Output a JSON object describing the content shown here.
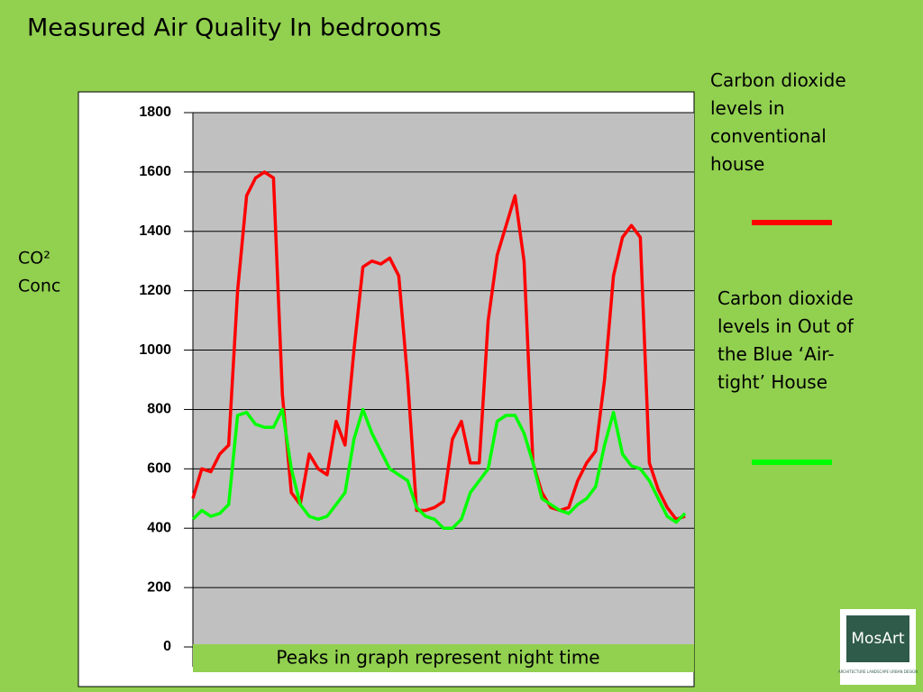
{
  "chart_data": {
    "type": "line",
    "title": "Measured Air Quality In bedrooms",
    "y_label_lines": [
      "CO²",
      "Conc"
    ],
    "annotation": "Peaks in graph represent night time",
    "logo": {
      "name": "MosArt",
      "tagline": "ARCHITECTURE LANDSCAPE URBAN DESIGN"
    },
    "categories": [
      null,
      null,
      null,
      null,
      null,
      null,
      null,
      null,
      null,
      null,
      null,
      null,
      null,
      null,
      null,
      null,
      null,
      null,
      null,
      null,
      null,
      null,
      null,
      null,
      null,
      null,
      null,
      null,
      null,
      null,
      null,
      null,
      null,
      null,
      null,
      null,
      null,
      null,
      null,
      null,
      null,
      null,
      null,
      null,
      null,
      null,
      null,
      null,
      null,
      null,
      null,
      null,
      null,
      null,
      null,
      null
    ],
    "series": [
      {
        "name": "Carbon dioxide levels in conventional house",
        "color": "#ff0000",
        "values": [
          500,
          600,
          590,
          650,
          680,
          1200,
          1520,
          1580,
          1600,
          1580,
          850,
          520,
          480,
          650,
          600,
          580,
          760,
          680,
          1000,
          1280,
          1300,
          1290,
          1310,
          1250,
          900,
          460,
          460,
          470,
          490,
          700,
          760,
          620,
          620,
          1100,
          1320,
          1420,
          1520,
          1300,
          620,
          520,
          470,
          460,
          470,
          560,
          620,
          660,
          900,
          1250,
          1380,
          1420,
          1380,
          620,
          530,
          470,
          430,
          440
        ]
      },
      {
        "name": "Carbon dioxide levels in Out of the Blue ‘Air-tight’ House",
        "color": "#00ff00",
        "values": [
          430,
          460,
          440,
          450,
          480,
          780,
          790,
          750,
          740,
          740,
          800,
          600,
          480,
          440,
          430,
          440,
          480,
          520,
          700,
          800,
          720,
          660,
          600,
          580,
          560,
          470,
          440,
          430,
          400,
          400,
          430,
          520,
          560,
          600,
          760,
          780,
          780,
          720,
          620,
          500,
          480,
          460,
          450,
          480,
          500,
          540,
          680,
          790,
          650,
          610,
          600,
          560,
          500,
          440,
          420,
          450
        ]
      }
    ],
    "ylim": [
      0,
      1800
    ],
    "yticks": [
      0,
      200,
      400,
      600,
      800,
      1000,
      1200,
      1400,
      1600,
      1800
    ],
    "grid": true
  }
}
